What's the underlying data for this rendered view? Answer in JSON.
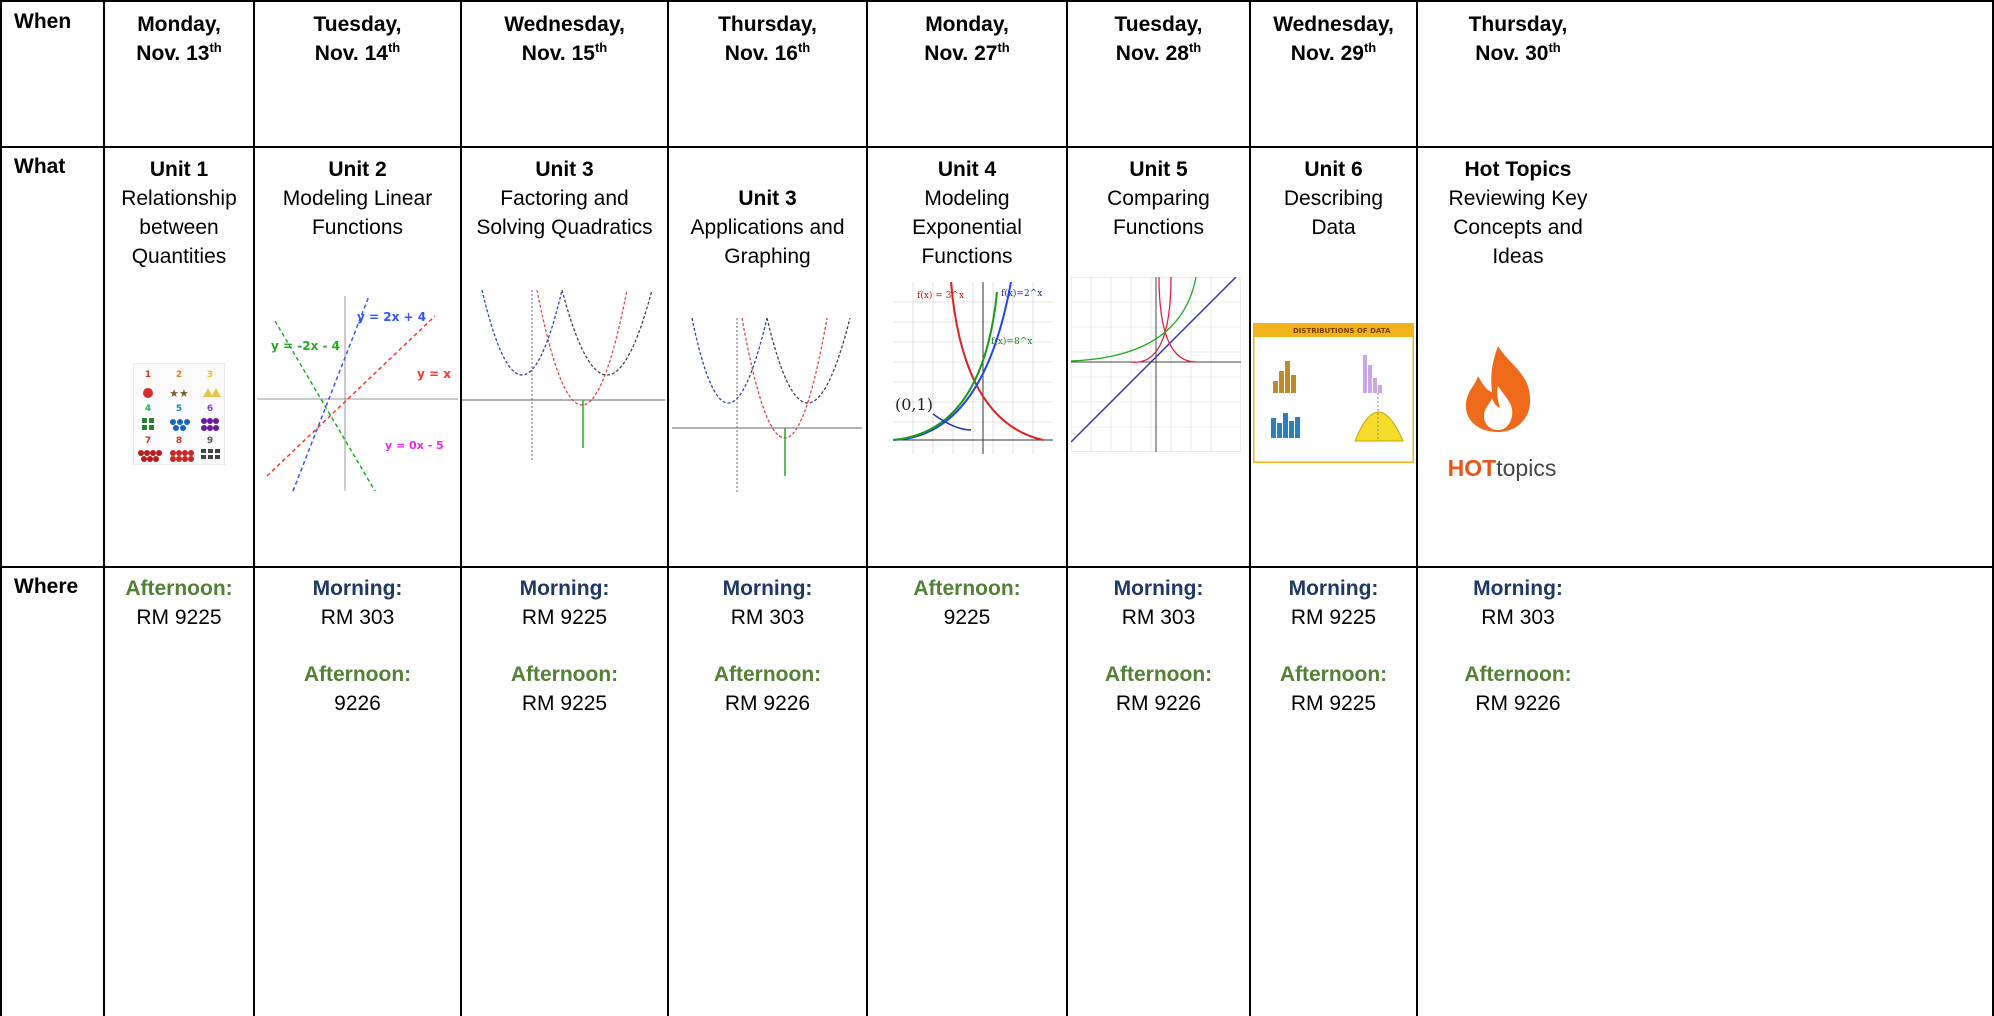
{
  "row_labels": {
    "when": "When",
    "what": "What",
    "where": "Where"
  },
  "days": [
    {
      "weekday": "Monday,",
      "date": "Nov. 13",
      "sup": "th"
    },
    {
      "weekday": "Tuesday,",
      "date": "Nov. 14",
      "sup": "th"
    },
    {
      "weekday": "Wednesday,",
      "date": "Nov. 15",
      "sup": "th"
    },
    {
      "weekday": "Thursday,",
      "date": "Nov. 16",
      "sup": "th"
    },
    {
      "weekday": "Monday,",
      "date": "Nov. 27",
      "sup": "th"
    },
    {
      "weekday": "Tuesday,",
      "date": "Nov. 28",
      "sup": "th"
    },
    {
      "weekday": "Wednesday,",
      "date": "Nov. 29",
      "sup": "th"
    },
    {
      "weekday": "Thursday,",
      "date": "Nov. 30",
      "sup": "th"
    }
  ],
  "topics": [
    {
      "unit": "Unit 1",
      "lines": [
        "Relationship",
        "between",
        "Quantities"
      ]
    },
    {
      "unit": "Unit 2",
      "lines": [
        "Modeling Linear",
        "Functions"
      ]
    },
    {
      "unit": "Unit 3",
      "lines": [
        "Factoring and",
        "Solving Quadratics"
      ]
    },
    {
      "unit": "Unit 3",
      "lines": [
        "Applications and",
        "Graphing"
      ]
    },
    {
      "unit": "Unit 4",
      "lines": [
        "Modeling",
        "Exponential",
        "Functions"
      ]
    },
    {
      "unit": "Unit 5",
      "lines": [
        "Comparing",
        "Functions"
      ]
    },
    {
      "unit": "Unit 6",
      "lines": [
        "Describing",
        "Data"
      ]
    },
    {
      "unit": "Hot Topics",
      "lines": [
        "Reviewing Key",
        "Concepts and",
        "Ideas"
      ]
    }
  ],
  "images": {
    "unit2": {
      "eq1": "y = 2x + 4",
      "eq2": "y = -2x - 4",
      "eq3": "y = x",
      "eq4": "y = 0x - 5"
    },
    "unit4": {
      "f1": "f(x) = 3^x",
      "f2": "f(x)=2^x",
      "f3": "f(x)=8^x",
      "pt": "(0,1)"
    },
    "unit6": {
      "title": "DISTRIBUTIONS OF DATA"
    },
    "hot": {
      "bold": "HOT",
      "rest": "topics"
    }
  },
  "where": [
    [
      {
        "label": "Afternoon:",
        "room": "RM 9225",
        "kind": "afternoon"
      }
    ],
    [
      {
        "label": "Morning:",
        "room": "RM 303",
        "kind": "morning"
      },
      {
        "label": "Afternoon:",
        "room": "9226",
        "kind": "afternoon"
      }
    ],
    [
      {
        "label": "Morning:",
        "room": "RM 9225",
        "kind": "morning"
      },
      {
        "label": "Afternoon:",
        "room": "RM 9225",
        "kind": "afternoon"
      }
    ],
    [
      {
        "label": "Morning:",
        "room": "RM 303",
        "kind": "morning"
      },
      {
        "label": "Afternoon:",
        "room": "RM 9226",
        "kind": "afternoon"
      }
    ],
    [
      {
        "label": "Afternoon:",
        "room": "9225",
        "kind": "afternoon"
      }
    ],
    [
      {
        "label": "Morning:",
        "room": "RM 303",
        "kind": "morning"
      },
      {
        "label": "Afternoon:",
        "room": "RM 9226",
        "kind": "afternoon"
      }
    ],
    [
      {
        "label": "Morning:",
        "room": "RM 9225",
        "kind": "morning"
      },
      {
        "label": "Afternoon:",
        "room": "RM 9225",
        "kind": "afternoon"
      }
    ],
    [
      {
        "label": "Morning:",
        "room": "RM 303",
        "kind": "morning"
      },
      {
        "label": "Afternoon:",
        "room": "RM 9226",
        "kind": "afternoon"
      }
    ]
  ]
}
